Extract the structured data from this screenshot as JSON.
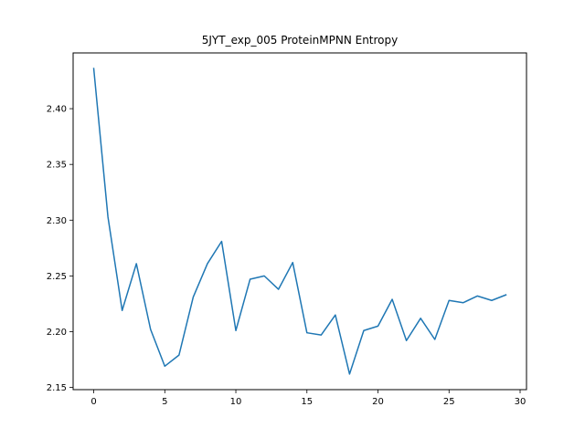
{
  "chart_data": {
    "type": "line",
    "title": "5JYT_exp_005 ProteinMPNN Entropy",
    "xlabel": "",
    "ylabel": "",
    "x": [
      0,
      1,
      2,
      3,
      4,
      5,
      6,
      7,
      8,
      9,
      10,
      11,
      12,
      13,
      14,
      15,
      16,
      17,
      18,
      19,
      20,
      21,
      22,
      23,
      24,
      25,
      26,
      27,
      28,
      29
    ],
    "series": [
      {
        "color": "#1f77b4",
        "values": [
          2.436,
          2.303,
          2.219,
          2.261,
          2.202,
          2.169,
          2.179,
          2.231,
          2.261,
          2.281,
          2.201,
          2.247,
          2.25,
          2.238,
          2.262,
          2.199,
          2.197,
          2.215,
          2.162,
          2.201,
          2.205,
          2.229,
          2.192,
          2.212,
          2.193,
          2.228,
          2.226,
          2.232,
          2.228,
          2.233
        ]
      }
    ],
    "xlim": [
      -1.45,
      30.45
    ],
    "ylim": [
      2.148,
      2.45
    ],
    "xticks": [
      0,
      5,
      10,
      15,
      20,
      25,
      30
    ],
    "xtick_labels": [
      "0",
      "5",
      "10",
      "15",
      "20",
      "25",
      "30"
    ],
    "yticks": [
      2.15,
      2.2,
      2.25,
      2.3,
      2.35,
      2.4
    ],
    "ytick_labels": [
      "2.15",
      "2.20",
      "2.25",
      "2.30",
      "2.35",
      "2.40"
    ],
    "grid": false,
    "legend": "none"
  }
}
